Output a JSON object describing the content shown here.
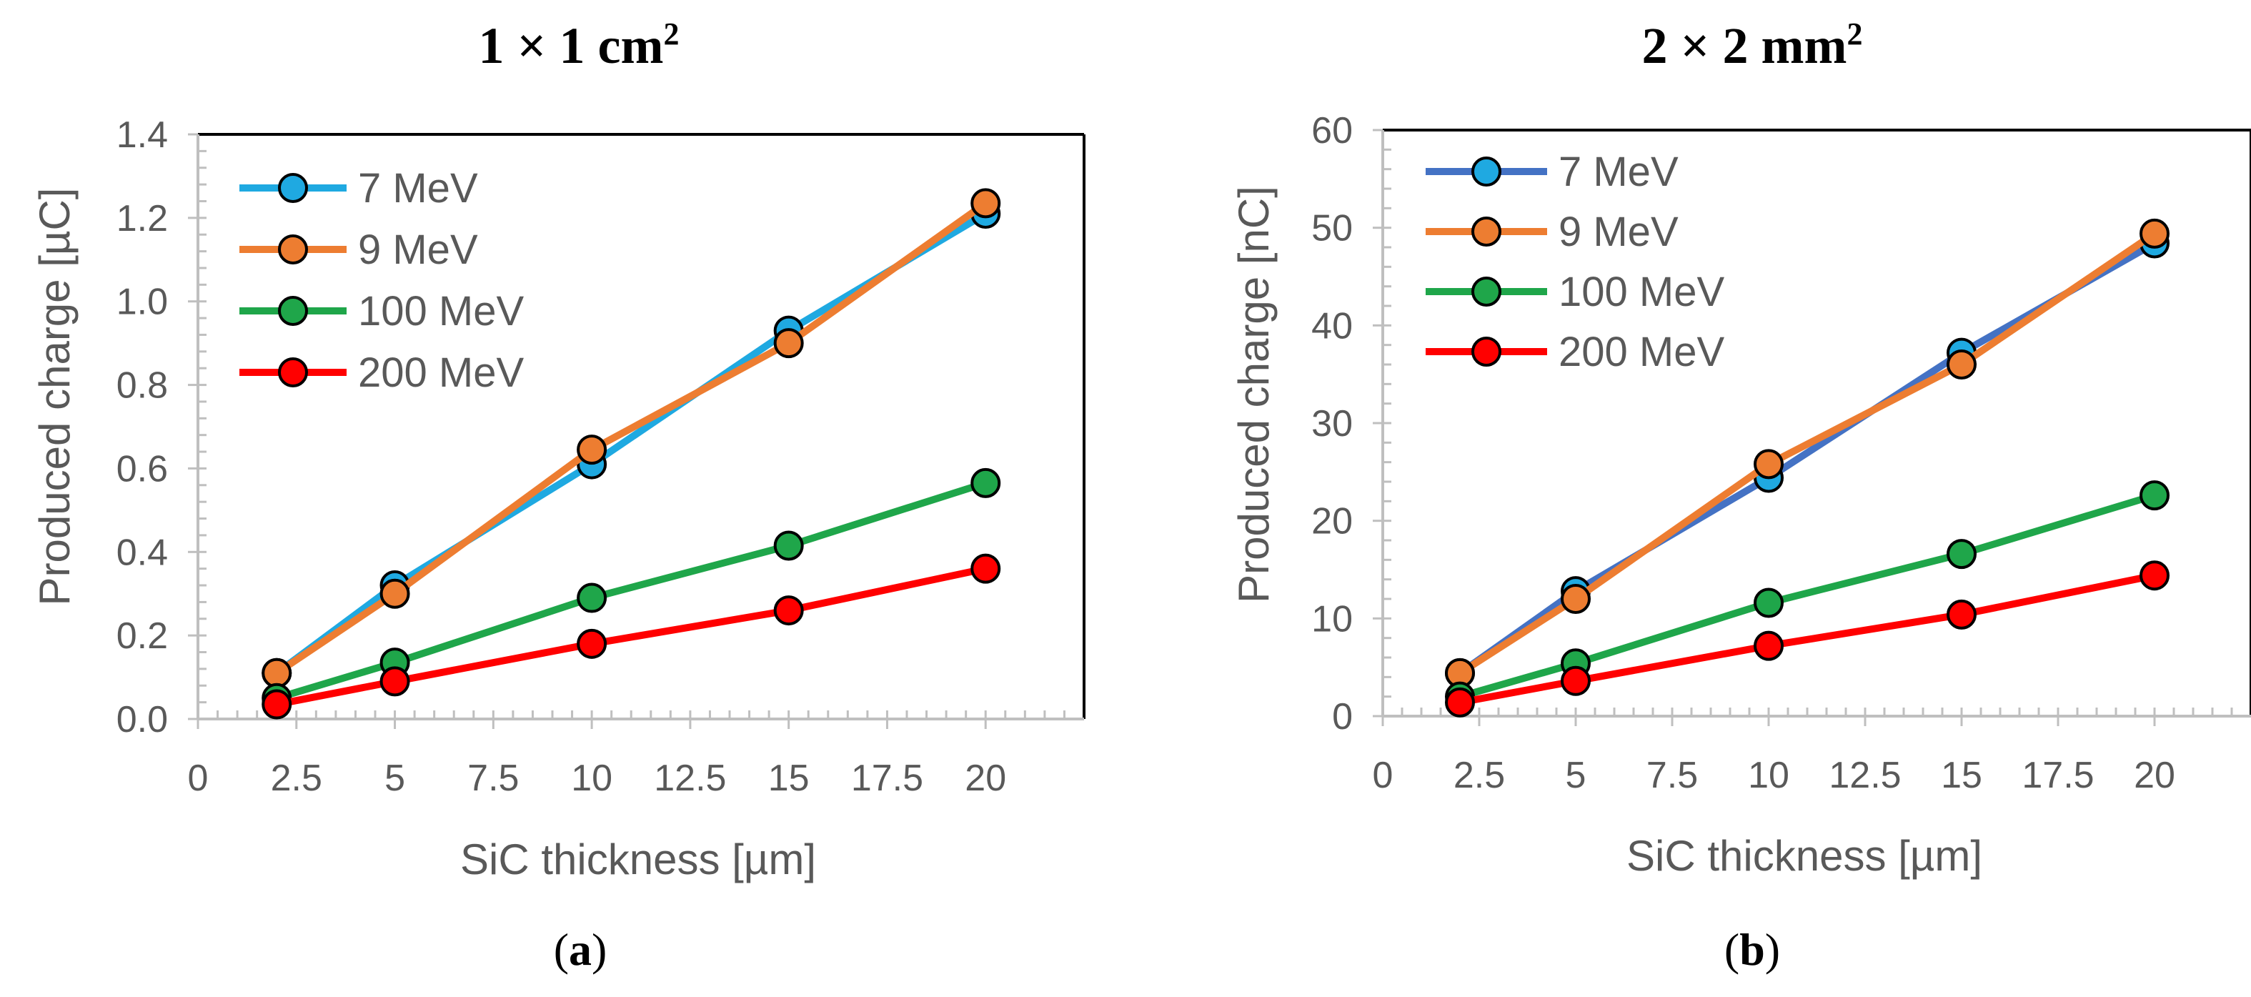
{
  "chart_data": [
    {
      "type": "line",
      "title": "1 × 1 cm",
      "title_superscript": "2",
      "caption_letter": "a",
      "xlabel": "SiC thickness [µm]",
      "ylabel": "Produced charge [µC]",
      "xlim": [
        0,
        22.5
      ],
      "ylim": [
        0,
        1.4
      ],
      "xticks": [
        0,
        2.5,
        5,
        7.5,
        10,
        12.5,
        15,
        17.5,
        20
      ],
      "xtick_labels": [
        "0",
        "2.5",
        "5",
        "7.5",
        "10",
        "12.5",
        "15",
        "17.5",
        "20"
      ],
      "yticks": [
        0,
        0.2,
        0.4,
        0.6,
        0.8,
        1.0,
        1.2,
        1.4
      ],
      "ytick_labels": [
        "0.0",
        "0.2",
        "0.4",
        "0.6",
        "0.8",
        "1.0",
        "1.2",
        "1.4"
      ],
      "x": [
        2,
        5,
        10,
        15,
        20
      ],
      "legend_position": "top-left",
      "series": [
        {
          "name": "7 MeV",
          "color": "#1FA9E1",
          "values": [
            0.11,
            0.32,
            0.61,
            0.93,
            1.21
          ]
        },
        {
          "name": "9 MeV",
          "color": "#ED7D31",
          "values": [
            0.11,
            0.3,
            0.645,
            0.9,
            1.235
          ]
        },
        {
          "name": "100 MeV",
          "color": "#1FA64A",
          "values": [
            0.05,
            0.135,
            0.29,
            0.415,
            0.565
          ]
        },
        {
          "name": "200 MeV",
          "color": "#FF0000",
          "values": [
            0.035,
            0.09,
            0.18,
            0.26,
            0.36
          ]
        }
      ]
    },
    {
      "type": "line",
      "title": "2 × 2 mm",
      "title_superscript": "2",
      "caption_letter": "b",
      "xlabel": "SiC thickness [µm]",
      "ylabel": "Produced charge [nC]",
      "xlim": [
        0,
        22.5
      ],
      "ylim": [
        0,
        60
      ],
      "xticks": [
        0,
        2.5,
        5,
        7.5,
        10,
        12.5,
        15,
        17.5,
        20
      ],
      "xtick_labels": [
        "0",
        "2.5",
        "5",
        "7.5",
        "10",
        "12.5",
        "15",
        "17.5",
        "20"
      ],
      "yticks": [
        0,
        10,
        20,
        30,
        40,
        50,
        60
      ],
      "ytick_labels": [
        "0",
        "10",
        "20",
        "30",
        "40",
        "50",
        "60"
      ],
      "x": [
        2,
        5,
        10,
        15,
        20
      ],
      "legend_position": "top-left",
      "series": [
        {
          "name": "7 MeV",
          "color": "#4472C4",
          "marker_color": "#1FA9E1",
          "values": [
            4.4,
            12.8,
            24.4,
            37.2,
            48.4
          ]
        },
        {
          "name": "9 MeV",
          "color": "#ED7D31",
          "values": [
            4.4,
            12.0,
            25.8,
            36.0,
            49.4
          ]
        },
        {
          "name": "100 MeV",
          "color": "#1FA64A",
          "values": [
            2.0,
            5.4,
            11.6,
            16.6,
            22.6
          ]
        },
        {
          "name": "200 MeV",
          "color": "#FF0000",
          "values": [
            1.4,
            3.6,
            7.2,
            10.4,
            14.4
          ]
        }
      ]
    }
  ]
}
